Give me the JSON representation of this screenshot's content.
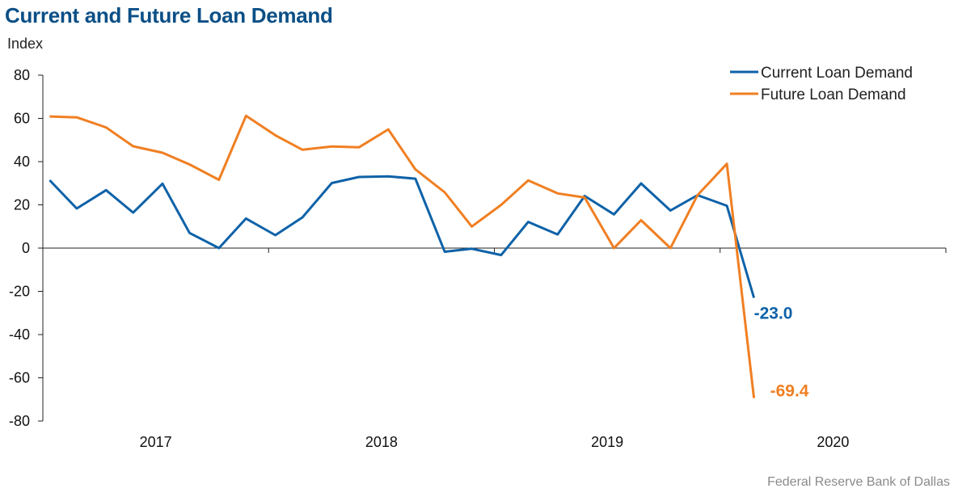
{
  "chart_data": {
    "type": "line",
    "title": "Current and Future Loan Demand",
    "ylabel": "Index",
    "xlabel": "",
    "ylim": [
      -80,
      80
    ],
    "yticks": [
      80,
      60,
      40,
      20,
      0,
      -20,
      -40,
      -60,
      -80
    ],
    "xlim": [
      2016.5,
      2020.5
    ],
    "xticks": [
      {
        "label": "2017",
        "x": 2017
      },
      {
        "label": "2018",
        "x": 2018
      },
      {
        "label": "2019",
        "x": 2019
      },
      {
        "label": "2020",
        "x": 2020
      }
    ],
    "year_boundaries": [
      2017.5,
      2018.5,
      2019.5,
      2020.5
    ],
    "legend": "top-right",
    "series": [
      {
        "name": "Current Loan Demand",
        "color": "#0e62a8",
        "x": [
          2016.53,
          2016.65,
          2016.78,
          2016.9,
          2017.03,
          2017.15,
          2017.28,
          2017.4,
          2017.53,
          2017.65,
          2017.78,
          2017.9,
          2018.03,
          2018.15,
          2018.28,
          2018.4,
          2018.53,
          2018.65,
          2018.78,
          2018.9,
          2019.03,
          2019.15,
          2019.28,
          2019.4,
          2019.53,
          2019.65
        ],
        "values": [
          31.4,
          18.3,
          26.8,
          16.4,
          29.8,
          7.0,
          0.0,
          13.7,
          6.0,
          14.2,
          30.1,
          32.9,
          33.2,
          32.1,
          -1.7,
          -0.3,
          -3.2,
          12.1,
          6.3,
          24.1,
          15.6,
          29.9,
          17.4,
          24.5,
          19.6,
          -23.0
        ]
      },
      {
        "name": "Future Loan Demand",
        "color": "#f07f22",
        "x": [
          2016.53,
          2016.65,
          2016.78,
          2016.9,
          2017.03,
          2017.15,
          2017.28,
          2017.4,
          2017.53,
          2017.65,
          2017.78,
          2017.9,
          2018.03,
          2018.15,
          2018.28,
          2018.4,
          2018.53,
          2018.65,
          2018.78,
          2018.9,
          2019.03,
          2019.15,
          2019.28,
          2019.4,
          2019.53,
          2019.65
        ],
        "values": [
          60.9,
          60.5,
          55.8,
          47.1,
          44.1,
          38.7,
          31.6,
          61.2,
          52.2,
          45.5,
          47.0,
          46.6,
          54.9,
          36.4,
          25.8,
          10.0,
          20.0,
          31.3,
          25.3,
          23.4,
          0.0,
          12.9,
          0.0,
          24.5,
          39.0,
          -69.4
        ]
      }
    ],
    "end_labels": [
      {
        "text": "-23.0",
        "series": 0,
        "color": "#0e62a8"
      },
      {
        "text": "-69.4",
        "series": 1,
        "color": "#f07f22"
      }
    ]
  },
  "footer": {
    "source": "Federal Reserve Bank of Dallas"
  }
}
